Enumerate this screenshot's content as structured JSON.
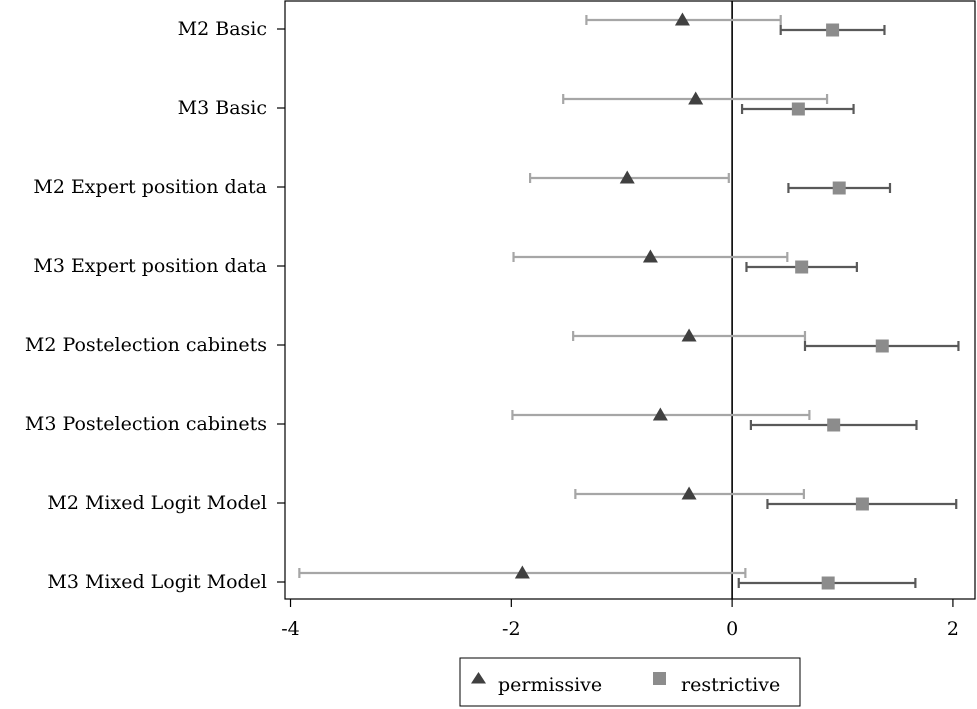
{
  "chart_data": {
    "type": "scatter",
    "categories": [
      "M2 Basic",
      "M3 Basic",
      "M2 Expert position data",
      "M3 Expert position data",
      "M2 Postelection cabinets",
      "M3 Postelection cabinets",
      "M2 Mixed Logit Model",
      "M3 Mixed Logit Model"
    ],
    "series": [
      {
        "name": "permissive",
        "color": "#404040",
        "bar_color": "#a6a6a6",
        "marker": "triangle",
        "values": [
          -0.45,
          -0.33,
          -0.95,
          -0.74,
          -0.39,
          -0.65,
          -0.39,
          -1.9
        ],
        "lower": [
          -1.32,
          -1.53,
          -1.83,
          -1.98,
          -1.44,
          -1.99,
          -1.42,
          -3.92
        ],
        "upper": [
          0.44,
          0.86,
          -0.03,
          0.5,
          0.66,
          0.7,
          0.65,
          0.12
        ]
      },
      {
        "name": "restrictive",
        "color": "#8c8c8c",
        "bar_color": "#595959",
        "marker": "square",
        "values": [
          0.91,
          0.6,
          0.97,
          0.63,
          1.36,
          0.92,
          1.18,
          0.87
        ],
        "lower": [
          0.44,
          0.09,
          0.51,
          0.13,
          0.66,
          0.17,
          0.32,
          0.06
        ],
        "upper": [
          1.38,
          1.1,
          1.43,
          1.13,
          2.05,
          1.67,
          2.03,
          1.66
        ]
      }
    ],
    "xticks": [
      "-4",
      "-2",
      "0",
      "2"
    ],
    "xlim": [
      -4.05,
      2.2
    ],
    "reference_line": 0,
    "legend_position": "bottom"
  }
}
